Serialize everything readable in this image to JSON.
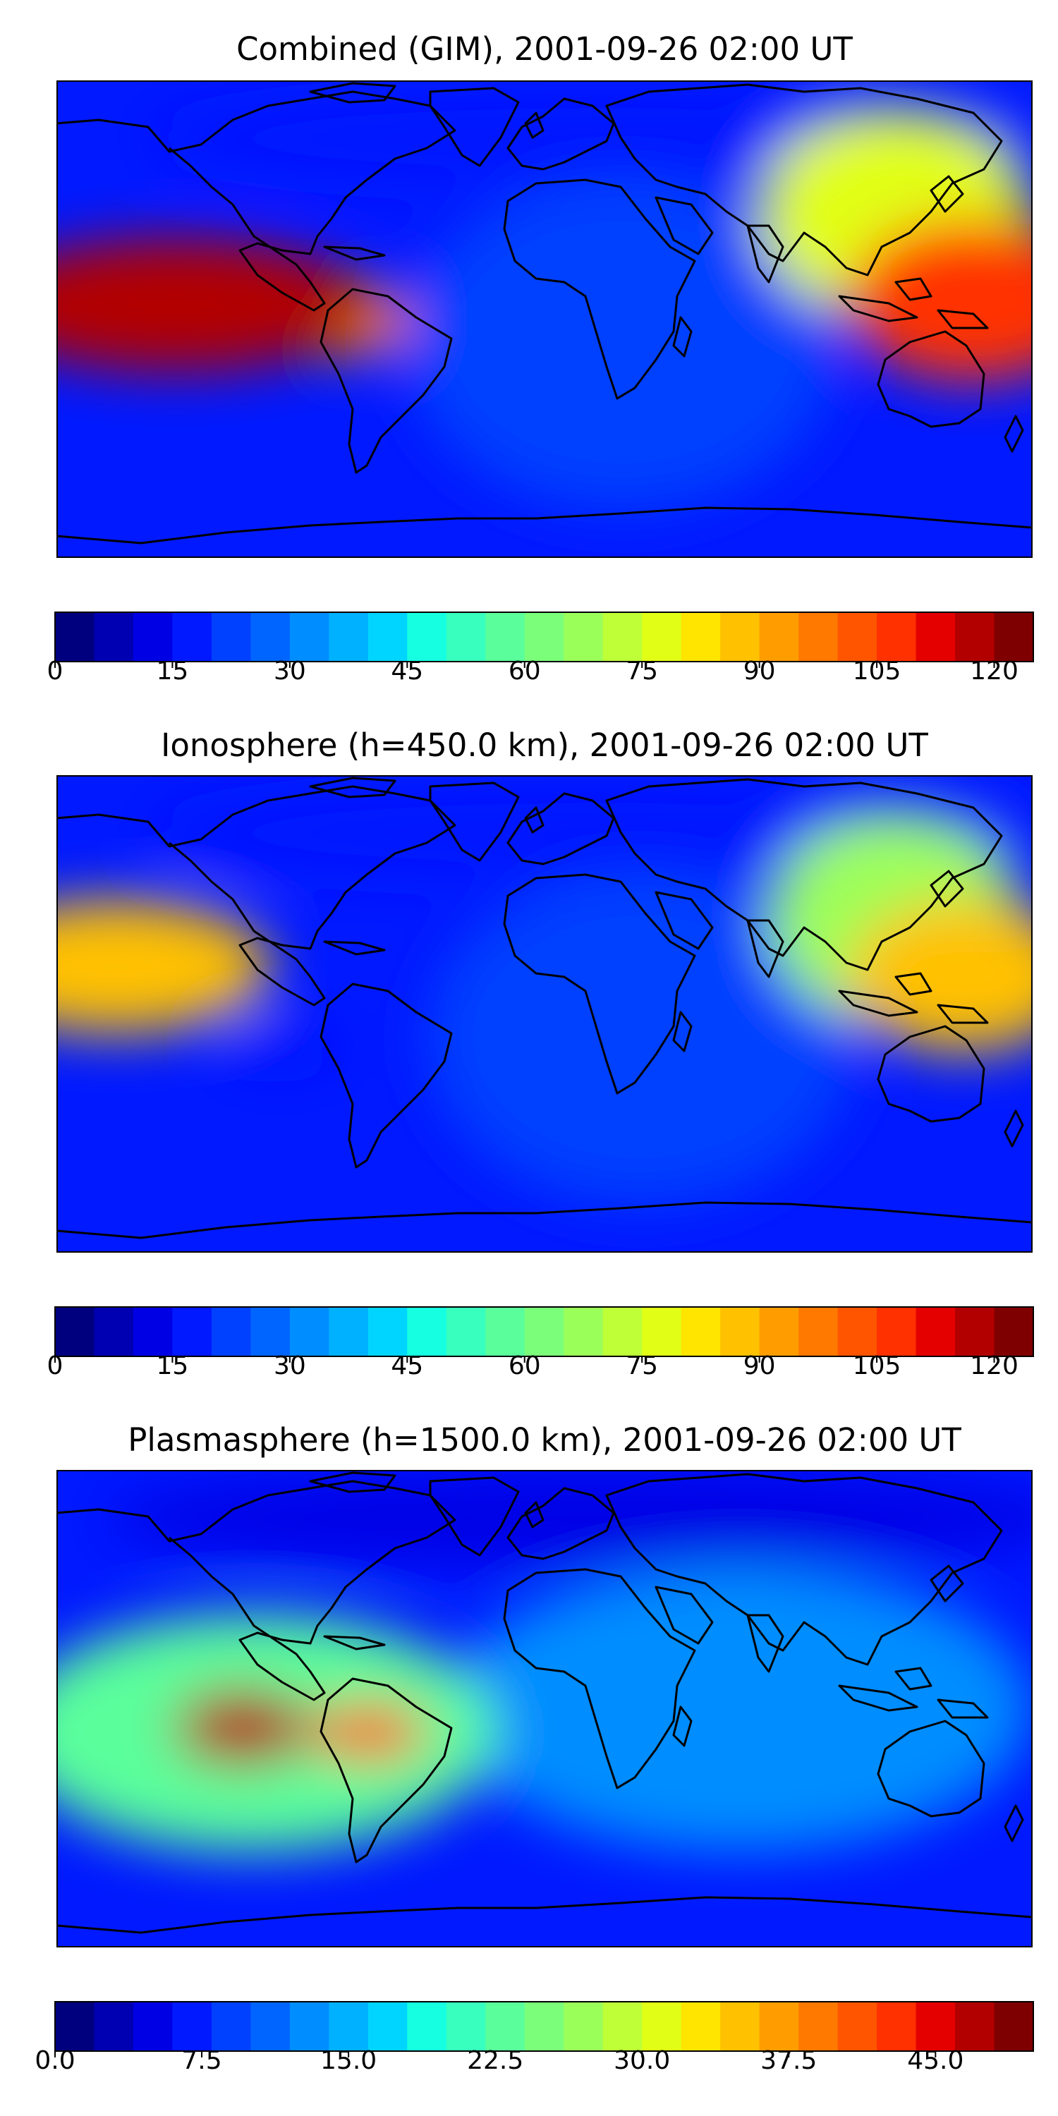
{
  "chart_data": [
    {
      "type": "heatmap",
      "title": "Combined (GIM), 2001-09-26 02:00 UT",
      "projection": "world map with coastlines",
      "colormap": "jet",
      "colorbar": {
        "range": [
          0,
          125
        ],
        "ticks": [
          "0",
          "15",
          "30",
          "45",
          "60",
          "75",
          "90",
          "105",
          "120"
        ]
      },
      "hotspots": [
        {
          "region": "central Pacific (equatorial)",
          "value": 115
        },
        {
          "region": "western Pacific / Indonesia",
          "value": 105
        },
        {
          "region": "East Asia",
          "value": 75
        },
        {
          "region": "South America north coast",
          "value": 95
        },
        {
          "region": "Atlantic / Africa",
          "value": 20
        },
        {
          "region": "high latitudes",
          "value": 15
        }
      ]
    },
    {
      "type": "heatmap",
      "title": "Ionosphere  (h=450.0 km), 2001-09-26 02:00 UT",
      "projection": "world map with coastlines",
      "colormap": "jet",
      "colorbar": {
        "range": [
          0,
          125
        ],
        "ticks": [
          "0",
          "15",
          "30",
          "45",
          "60",
          "75",
          "90",
          "105",
          "120"
        ]
      },
      "hotspots": [
        {
          "region": "central Pacific (equatorial)",
          "value": 88
        },
        {
          "region": "western Pacific / Indonesia",
          "value": 85
        },
        {
          "region": "East Asia",
          "value": 65
        },
        {
          "region": "eastern Pacific (equatorial minimum)",
          "value": 15
        },
        {
          "region": "Atlantic / Africa",
          "value": 20
        },
        {
          "region": "high latitudes",
          "value": 15
        }
      ]
    },
    {
      "type": "heatmap",
      "title": "Plasmasphere (h=1500.0 km), 2001-09-26 02:00 UT",
      "projection": "world map with coastlines",
      "colormap": "jet",
      "colorbar": {
        "range": [
          0,
          50
        ],
        "ticks": [
          "0.0",
          "7.5",
          "15.0",
          "22.5",
          "30.0",
          "37.5",
          "45.0"
        ]
      },
      "hotspots": [
        {
          "region": "eastern Pacific (equatorial)",
          "value": 47
        },
        {
          "region": "South America",
          "value": 40
        },
        {
          "region": "Pacific tropics",
          "value": 22
        },
        {
          "region": "Africa / Indian Ocean",
          "value": 12
        },
        {
          "region": "high latitudes",
          "value": 5
        }
      ]
    }
  ],
  "colors": {
    "jet": [
      "#00007f",
      "#0000b2",
      "#0000e5",
      "#0019ff",
      "#0041ff",
      "#0065ff",
      "#008dff",
      "#00b1ff",
      "#00d5ff",
      "#16ffe1",
      "#38ffbe",
      "#5aff9b",
      "#7bff7b",
      "#9bff5a",
      "#beff38",
      "#e1ff16",
      "#ffe500",
      "#ffc100",
      "#ff9d00",
      "#ff7900",
      "#ff5500",
      "#ff3100",
      "#e50000",
      "#b20000",
      "#7f0000"
    ],
    "coastline": "#000000"
  }
}
